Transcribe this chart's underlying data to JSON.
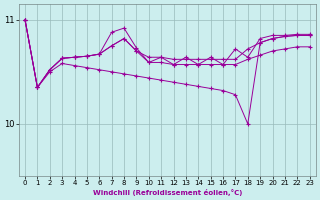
{
  "xlabel": "Windchill (Refroidissement éolien,°C)",
  "bg_color": "#cceeee",
  "line_color": "#990099",
  "grid_color": "#99bbbb",
  "xlim": [
    -0.5,
    23.5
  ],
  "ylim": [
    9.5,
    11.15
  ],
  "yticks": [
    10,
    11
  ],
  "xticks": [
    0,
    1,
    2,
    3,
    4,
    5,
    6,
    7,
    8,
    9,
    10,
    11,
    12,
    13,
    14,
    15,
    16,
    17,
    18,
    19,
    20,
    21,
    22,
    23
  ],
  "s1": [
    11.0,
    10.35,
    10.52,
    10.63,
    10.64,
    10.65,
    10.67,
    10.75,
    10.82,
    10.7,
    10.64,
    10.64,
    10.62,
    10.62,
    10.62,
    10.62,
    10.62,
    10.62,
    10.72,
    10.78,
    10.82,
    10.84,
    10.85,
    10.85
  ],
  "s2": [
    11.0,
    10.35,
    10.52,
    10.63,
    10.64,
    10.65,
    10.67,
    10.88,
    10.92,
    10.73,
    10.59,
    10.64,
    10.57,
    10.64,
    10.57,
    10.64,
    10.57,
    10.72,
    10.64,
    10.82,
    10.85,
    10.85,
    10.86,
    10.86
  ],
  "s3": [
    11.0,
    10.35,
    10.52,
    10.63,
    10.64,
    10.65,
    10.67,
    10.75,
    10.82,
    10.7,
    10.59,
    10.59,
    10.57,
    10.57,
    10.57,
    10.57,
    10.57,
    10.57,
    10.62,
    10.66,
    10.7,
    10.72,
    10.74,
    10.74
  ],
  "s4": [
    11.0,
    10.35,
    10.5,
    10.58,
    10.56,
    10.54,
    10.52,
    10.5,
    10.48,
    10.46,
    10.44,
    10.42,
    10.4,
    10.38,
    10.36,
    10.34,
    10.32,
    10.28,
    10.0,
    10.78,
    10.82,
    10.84,
    10.85,
    10.85
  ]
}
